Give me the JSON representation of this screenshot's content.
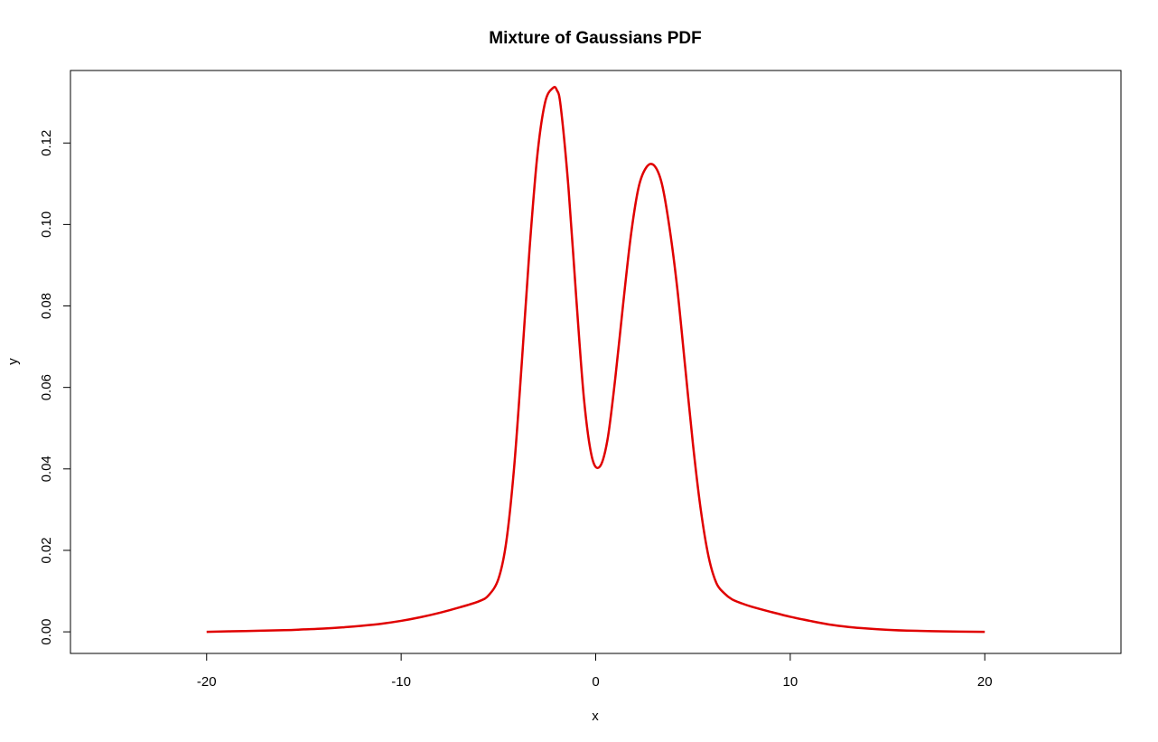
{
  "chart_data": {
    "type": "line",
    "title": "Mixture of Gaussians PDF",
    "xlabel": "x",
    "ylabel": "y",
    "xlim": [
      -27,
      27
    ],
    "ylim": [
      -0.0053,
      0.1378
    ],
    "x_ticks": [
      -20,
      -10,
      0,
      10,
      20
    ],
    "x_tick_labels": [
      "-20",
      "-10",
      "0",
      "10",
      "20"
    ],
    "y_ticks": [
      0.0,
      0.02,
      0.04,
      0.06,
      0.08,
      0.1,
      0.12
    ],
    "y_tick_labels": [
      "0.00",
      "0.02",
      "0.04",
      "0.06",
      "0.08",
      "0.10",
      "0.12"
    ],
    "grid": false,
    "series": [
      {
        "color": "#e00000",
        "x": [
          -20,
          -18,
          -16,
          -15,
          -14,
          -13,
          -12,
          -11,
          -10,
          -9,
          -8,
          -7,
          -6,
          -5.5,
          -5,
          -4.6,
          -4.2,
          -3.8,
          -3.4,
          -3.0,
          -2.6,
          -2.2,
          -2.0,
          -1.8,
          -1.4,
          -1.0,
          -0.6,
          -0.2,
          0.2,
          0.6,
          1.0,
          1.4,
          1.8,
          2.2,
          2.6,
          3.0,
          3.4,
          3.8,
          4.2,
          4.6,
          5.0,
          5.4,
          5.8,
          6.2,
          6.6,
          7.0,
          7.5,
          8,
          9,
          10,
          11,
          12,
          13,
          14,
          15,
          16,
          18,
          20
        ],
        "y": [
          0.0,
          0.0002,
          0.0004,
          0.0006,
          0.0008,
          0.0011,
          0.0015,
          0.002,
          0.0027,
          0.0036,
          0.0047,
          0.006,
          0.0075,
          0.009,
          0.013,
          0.022,
          0.04,
          0.066,
          0.094,
          0.117,
          0.13,
          0.1335,
          0.133,
          0.129,
          0.109,
          0.082,
          0.057,
          0.043,
          0.0405,
          0.047,
          0.062,
          0.08,
          0.097,
          0.109,
          0.114,
          0.1145,
          0.11,
          0.099,
          0.084,
          0.065,
          0.046,
          0.03,
          0.0185,
          0.012,
          0.0095,
          0.008,
          0.007,
          0.0062,
          0.0049,
          0.0037,
          0.0027,
          0.0018,
          0.0012,
          0.0008,
          0.0005,
          0.0003,
          0.0001,
          0.0
        ]
      }
    ]
  }
}
